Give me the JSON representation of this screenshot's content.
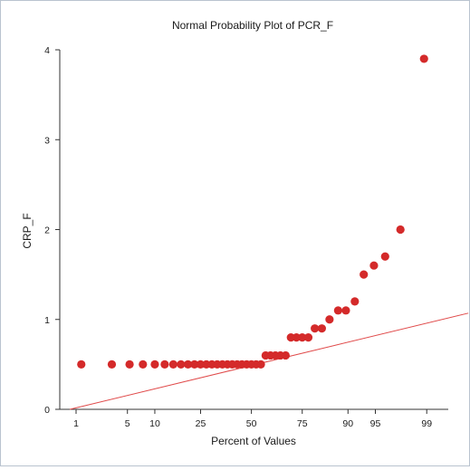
{
  "chart_data": {
    "type": "scatter",
    "title": "Normal Probability Plot of PCR_F",
    "xlabel": "Percent of Values",
    "ylabel": "CRP_F",
    "x_scale": "normal-probability",
    "xlim": [
      0.55,
      99.55
    ],
    "ylim": [
      0,
      4
    ],
    "x_ticks": [
      1,
      5,
      10,
      25,
      50,
      75,
      90,
      95,
      99
    ],
    "y_ticks": [
      0,
      1,
      2,
      3,
      4
    ],
    "grid": false,
    "legend": "none",
    "colors": {
      "points": "#d42a2a",
      "reference_line": "#e04a4a",
      "axis": "#333333"
    },
    "reference_line": {
      "x": [
        0.8,
        99.8
      ],
      "y": [
        0,
        1.07
      ]
    },
    "points": [
      {
        "x": 1.2,
        "y": 0.5
      },
      {
        "x": 3.2,
        "y": 0.5
      },
      {
        "x": 5.3,
        "y": 0.5
      },
      {
        "x": 7.5,
        "y": 0.5
      },
      {
        "x": 10,
        "y": 0.5
      },
      {
        "x": 12.5,
        "y": 0.5
      },
      {
        "x": 15,
        "y": 0.5
      },
      {
        "x": 17.5,
        "y": 0.5
      },
      {
        "x": 20,
        "y": 0.5
      },
      {
        "x": 22.5,
        "y": 0.5
      },
      {
        "x": 25,
        "y": 0.5
      },
      {
        "x": 27.5,
        "y": 0.5
      },
      {
        "x": 30,
        "y": 0.5
      },
      {
        "x": 32.5,
        "y": 0.5
      },
      {
        "x": 35,
        "y": 0.5
      },
      {
        "x": 37.5,
        "y": 0.5
      },
      {
        "x": 40,
        "y": 0.5
      },
      {
        "x": 42.5,
        "y": 0.5
      },
      {
        "x": 45,
        "y": 0.5
      },
      {
        "x": 47.5,
        "y": 0.5
      },
      {
        "x": 50,
        "y": 0.5
      },
      {
        "x": 52.5,
        "y": 0.5
      },
      {
        "x": 55,
        "y": 0.5
      },
      {
        "x": 57.5,
        "y": 0.6
      },
      {
        "x": 60,
        "y": 0.6
      },
      {
        "x": 62.5,
        "y": 0.6
      },
      {
        "x": 65,
        "y": 0.6
      },
      {
        "x": 67.5,
        "y": 0.6
      },
      {
        "x": 70,
        "y": 0.8
      },
      {
        "x": 72.5,
        "y": 0.8
      },
      {
        "x": 75,
        "y": 0.8
      },
      {
        "x": 77.5,
        "y": 0.8
      },
      {
        "x": 80,
        "y": 0.9
      },
      {
        "x": 82.5,
        "y": 0.9
      },
      {
        "x": 85,
        "y": 1.0
      },
      {
        "x": 87.5,
        "y": 1.1
      },
      {
        "x": 89.5,
        "y": 1.1
      },
      {
        "x": 91.5,
        "y": 1.2
      },
      {
        "x": 93.2,
        "y": 1.5
      },
      {
        "x": 94.8,
        "y": 1.6
      },
      {
        "x": 96.2,
        "y": 1.7
      },
      {
        "x": 97.6,
        "y": 2.0
      },
      {
        "x": 98.9,
        "y": 3.9
      }
    ]
  }
}
